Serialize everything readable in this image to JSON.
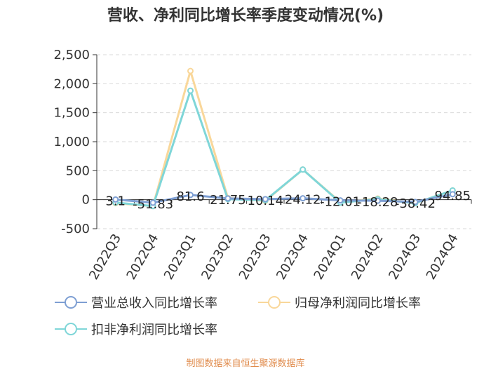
{
  "chart_data": {
    "type": "line",
    "title": "营收、净利同比增长率季度变动情况(%)",
    "categories": [
      "2022Q3",
      "2022Q4",
      "2023Q1",
      "2023Q2",
      "2023Q3",
      "2023Q4",
      "2024Q1",
      "2024Q2",
      "2024Q3",
      "2024Q4"
    ],
    "ylim": [
      -500,
      2500
    ],
    "yticks": [
      -500,
      0,
      500,
      1000,
      1500,
      2000,
      2500
    ],
    "ytick_labels": [
      "-500",
      "0",
      "500",
      "1,000",
      "1,500",
      "2,000",
      "2,500"
    ],
    "grid": true,
    "legend_position": "bottom",
    "series": [
      {
        "name": "营业总收入同比增长率",
        "color": "#7e9fd3",
        "values": [
          3.1,
          -51.83,
          81.6,
          21.75,
          10.14,
          24.12,
          -12.01,
          -18.28,
          -38.42,
          94.85
        ],
        "labels": [
          "3.1",
          "-51.83",
          "81.6",
          "21.75",
          "10.14",
          "24.12",
          "-12.01",
          "-18.28",
          "-38.42",
          "94.85"
        ]
      },
      {
        "name": "归母净利润同比增长率",
        "color": "#f9d79a",
        "values": [
          -60,
          -110,
          2220,
          30,
          -20,
          520,
          -40,
          20,
          -60,
          160
        ]
      },
      {
        "name": "扣非净利润同比增长率",
        "color": "#7fd6d8",
        "values": [
          -50,
          -110,
          1880,
          10,
          -10,
          520,
          -50,
          10,
          -60,
          160
        ]
      }
    ]
  },
  "source": "制图数据来自恒生聚源数据库"
}
